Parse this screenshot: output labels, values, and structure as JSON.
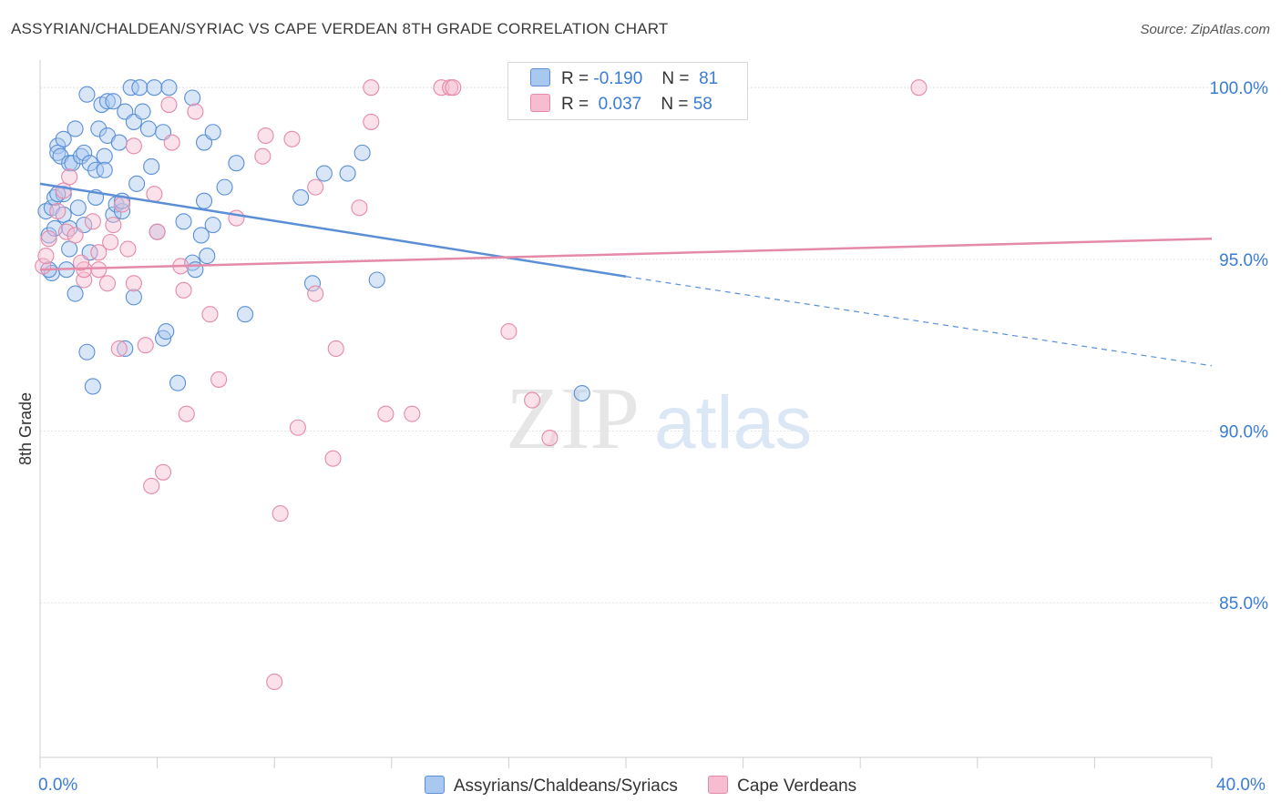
{
  "title": "ASSYRIAN/CHALDEAN/SYRIAC VS CAPE VERDEAN 8TH GRADE CORRELATION CHART",
  "source": "Source: ZipAtlas.com",
  "watermark": {
    "zip": "ZIP",
    "atlas": "atlas"
  },
  "legend": {
    "rows": [
      {
        "r_label": "R =",
        "r_value": "-0.190",
        "n_label": "N =",
        "n_value": "81",
        "color": "#a8c8f0",
        "border": "#5a8fd6"
      },
      {
        "r_label": "R =",
        "r_value": "0.037",
        "n_label": "N =",
        "n_value": "58",
        "color": "#f7bcd0",
        "border": "#e58aa8"
      }
    ]
  },
  "chart_data": {
    "type": "scatter",
    "title": "ASSYRIAN/CHALDEAN/SYRIAC VS CAPE VERDEAN 8TH GRADE CORRELATION CHART",
    "xlabel": "",
    "ylabel": "8th Grade",
    "xlim": [
      0,
      40
    ],
    "ylim": [
      80.5,
      100.8
    ],
    "x_tick_labels": [
      "0.0%",
      "40.0%"
    ],
    "y_ticks": [
      85,
      90,
      95,
      100
    ],
    "y_tick_labels": [
      "85.0%",
      "90.0%",
      "95.0%",
      "100.0%"
    ],
    "grid": true,
    "legend_position": "top-center",
    "series": [
      {
        "name": "Assyrians/Chaldeans/Syriacs",
        "color": "#5a8fd6",
        "fill": "rgba(168,200,240,0.45)",
        "trend": {
          "x0": 0,
          "y0": 97.2,
          "x1": 20,
          "y1": 94.5,
          "dash_to_x": 40,
          "dash_to_y": 91.9
        },
        "points": [
          [
            0.2,
            96.4
          ],
          [
            0.3,
            95.7
          ],
          [
            0.4,
            94.6
          ],
          [
            0.4,
            96.5
          ],
          [
            0.5,
            96.8
          ],
          [
            0.5,
            95.9
          ],
          [
            0.6,
            98.3
          ],
          [
            0.6,
            98.1
          ],
          [
            0.7,
            98.0
          ],
          [
            0.8,
            96.3
          ],
          [
            0.8,
            96.9
          ],
          [
            0.8,
            98.5
          ],
          [
            0.9,
            94.7
          ],
          [
            1.0,
            97.8
          ],
          [
            1.0,
            95.3
          ],
          [
            1.1,
            97.8
          ],
          [
            1.2,
            98.8
          ],
          [
            1.2,
            94.0
          ],
          [
            1.3,
            96.5
          ],
          [
            1.4,
            98.0
          ],
          [
            1.5,
            98.1
          ],
          [
            1.5,
            96.0
          ],
          [
            1.6,
            92.3
          ],
          [
            1.6,
            99.8
          ],
          [
            1.7,
            97.8
          ],
          [
            1.7,
            95.2
          ],
          [
            1.8,
            91.3
          ],
          [
            1.9,
            97.6
          ],
          [
            1.9,
            96.8
          ],
          [
            2.0,
            98.8
          ],
          [
            2.1,
            99.5
          ],
          [
            2.2,
            98.0
          ],
          [
            2.3,
            99.6
          ],
          [
            2.3,
            98.6
          ],
          [
            2.5,
            96.3
          ],
          [
            2.5,
            99.6
          ],
          [
            2.6,
            96.6
          ],
          [
            2.7,
            98.4
          ],
          [
            2.8,
            96.4
          ],
          [
            2.8,
            96.7
          ],
          [
            2.9,
            99.3
          ],
          [
            2.9,
            92.4
          ],
          [
            3.1,
            100.0
          ],
          [
            3.2,
            99.0
          ],
          [
            3.2,
            93.9
          ],
          [
            3.3,
            97.2
          ],
          [
            3.4,
            100.0
          ],
          [
            3.5,
            99.3
          ],
          [
            3.7,
            98.8
          ],
          [
            3.8,
            97.7
          ],
          [
            3.9,
            100.0
          ],
          [
            4.2,
            98.7
          ],
          [
            4.2,
            92.7
          ],
          [
            4.3,
            92.9
          ],
          [
            4.4,
            100.0
          ],
          [
            4.7,
            91.4
          ],
          [
            4.9,
            96.1
          ],
          [
            5.2,
            99.7
          ],
          [
            5.2,
            94.9
          ],
          [
            5.3,
            94.7
          ],
          [
            5.5,
            95.7
          ],
          [
            5.6,
            98.4
          ],
          [
            5.6,
            96.7
          ],
          [
            5.7,
            95.1
          ],
          [
            5.9,
            98.7
          ],
          [
            5.9,
            96.0
          ],
          [
            6.3,
            97.1
          ],
          [
            6.7,
            97.8
          ],
          [
            7.0,
            93.4
          ],
          [
            8.9,
            96.8
          ],
          [
            9.3,
            94.3
          ],
          [
            9.7,
            97.5
          ],
          [
            10.5,
            97.5
          ],
          [
            11.0,
            98.1
          ],
          [
            11.5,
            94.4
          ],
          [
            18.5,
            91.1
          ],
          [
            0.3,
            94.7
          ],
          [
            1.0,
            95.9
          ],
          [
            2.2,
            97.6
          ],
          [
            4.0,
            95.8
          ],
          [
            0.6,
            96.9
          ]
        ]
      },
      {
        "name": "Cape Verdeans",
        "color": "#e58aa8",
        "fill": "rgba(247,188,208,0.45)",
        "trend": {
          "x0": 0,
          "y0": 94.7,
          "x1": 40,
          "y1": 95.6
        },
        "points": [
          [
            0.1,
            94.8
          ],
          [
            0.3,
            95.6
          ],
          [
            0.6,
            96.4
          ],
          [
            0.8,
            97.0
          ],
          [
            0.9,
            95.8
          ],
          [
            1.0,
            97.4
          ],
          [
            1.2,
            95.7
          ],
          [
            1.5,
            94.4
          ],
          [
            1.5,
            94.7
          ],
          [
            1.8,
            96.1
          ],
          [
            2.0,
            95.2
          ],
          [
            2.0,
            94.7
          ],
          [
            2.3,
            94.3
          ],
          [
            2.4,
            95.5
          ],
          [
            2.5,
            96.0
          ],
          [
            2.7,
            92.4
          ],
          [
            2.8,
            96.6
          ],
          [
            3.0,
            95.3
          ],
          [
            3.2,
            94.3
          ],
          [
            3.2,
            98.3
          ],
          [
            3.6,
            92.5
          ],
          [
            3.8,
            88.4
          ],
          [
            3.9,
            96.9
          ],
          [
            4.0,
            95.8
          ],
          [
            4.2,
            88.8
          ],
          [
            4.4,
            99.5
          ],
          [
            4.5,
            98.4
          ],
          [
            4.8,
            94.8
          ],
          [
            4.9,
            94.1
          ],
          [
            5.0,
            90.5
          ],
          [
            5.3,
            99.3
          ],
          [
            5.8,
            93.4
          ],
          [
            6.1,
            91.5
          ],
          [
            6.7,
            96.2
          ],
          [
            7.6,
            98.0
          ],
          [
            7.7,
            98.6
          ],
          [
            8.0,
            82.7
          ],
          [
            8.2,
            87.6
          ],
          [
            8.6,
            98.5
          ],
          [
            8.8,
            90.1
          ],
          [
            9.4,
            94.0
          ],
          [
            9.4,
            97.1
          ],
          [
            10.0,
            89.2
          ],
          [
            10.1,
            92.4
          ],
          [
            10.9,
            96.5
          ],
          [
            11.3,
            99.0
          ],
          [
            11.3,
            100.0
          ],
          [
            11.8,
            90.5
          ],
          [
            12.7,
            90.5
          ],
          [
            13.7,
            100.0
          ],
          [
            14.0,
            100.0
          ],
          [
            14.1,
            100.0
          ],
          [
            16.0,
            92.9
          ],
          [
            16.8,
            90.9
          ],
          [
            17.4,
            89.8
          ],
          [
            30.0,
            100.0
          ],
          [
            0.2,
            95.1
          ],
          [
            1.4,
            94.9
          ]
        ]
      }
    ]
  }
}
